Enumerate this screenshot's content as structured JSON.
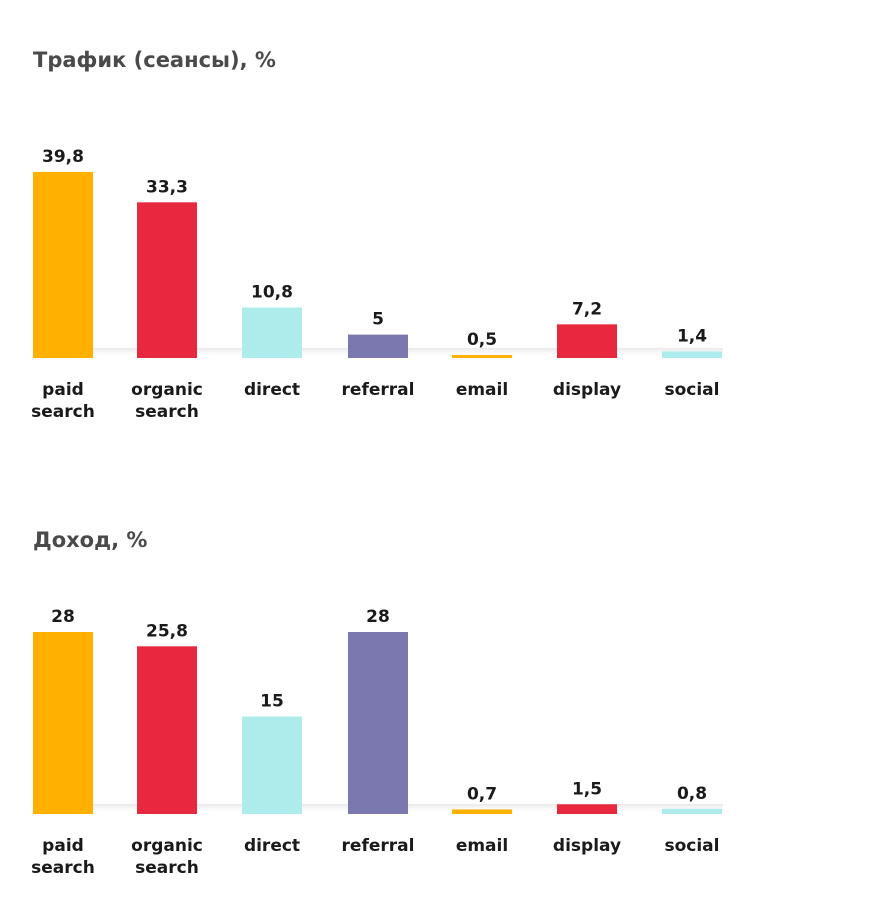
{
  "chart_data": [
    {
      "type": "bar",
      "title": "Трафик (сеансы), %",
      "categories": [
        [
          "paid",
          "search"
        ],
        [
          "organic",
          "search"
        ],
        [
          "direct"
        ],
        [
          "referral"
        ],
        [
          "email"
        ],
        [
          "display"
        ],
        [
          "social"
        ]
      ],
      "values": [
        39.8,
        33.3,
        10.8,
        5,
        0.5,
        7.2,
        1.4
      ],
      "value_labels": [
        "39,8",
        "33,3",
        "10,8",
        "5",
        "0,5",
        "7,2",
        "1,4"
      ],
      "colors": [
        "#FFB000",
        "#E8283E",
        "#AEECEC",
        "#7B78B0",
        "#FFB000",
        "#E8283E",
        "#AEECEC"
      ],
      "ylim": [
        0,
        40
      ],
      "grid": false,
      "legend": "none"
    },
    {
      "type": "bar",
      "title": "Доход, %",
      "categories": [
        [
          "paid",
          "search"
        ],
        [
          "organic",
          "search"
        ],
        [
          "direct"
        ],
        [
          "referral"
        ],
        [
          "email"
        ],
        [
          "display"
        ],
        [
          "social"
        ]
      ],
      "values": [
        28,
        25.8,
        15,
        28,
        0.7,
        1.5,
        0.8
      ],
      "value_labels": [
        "28",
        "25,8",
        "15",
        "28",
        "0,7",
        "1,5",
        "0,8"
      ],
      "colors": [
        "#FFB000",
        "#E8283E",
        "#AEECEC",
        "#7B78B0",
        "#FFB000",
        "#E8283E",
        "#AEECEC"
      ],
      "ylim": [
        0,
        28
      ],
      "grid": false,
      "legend": "none"
    }
  ]
}
